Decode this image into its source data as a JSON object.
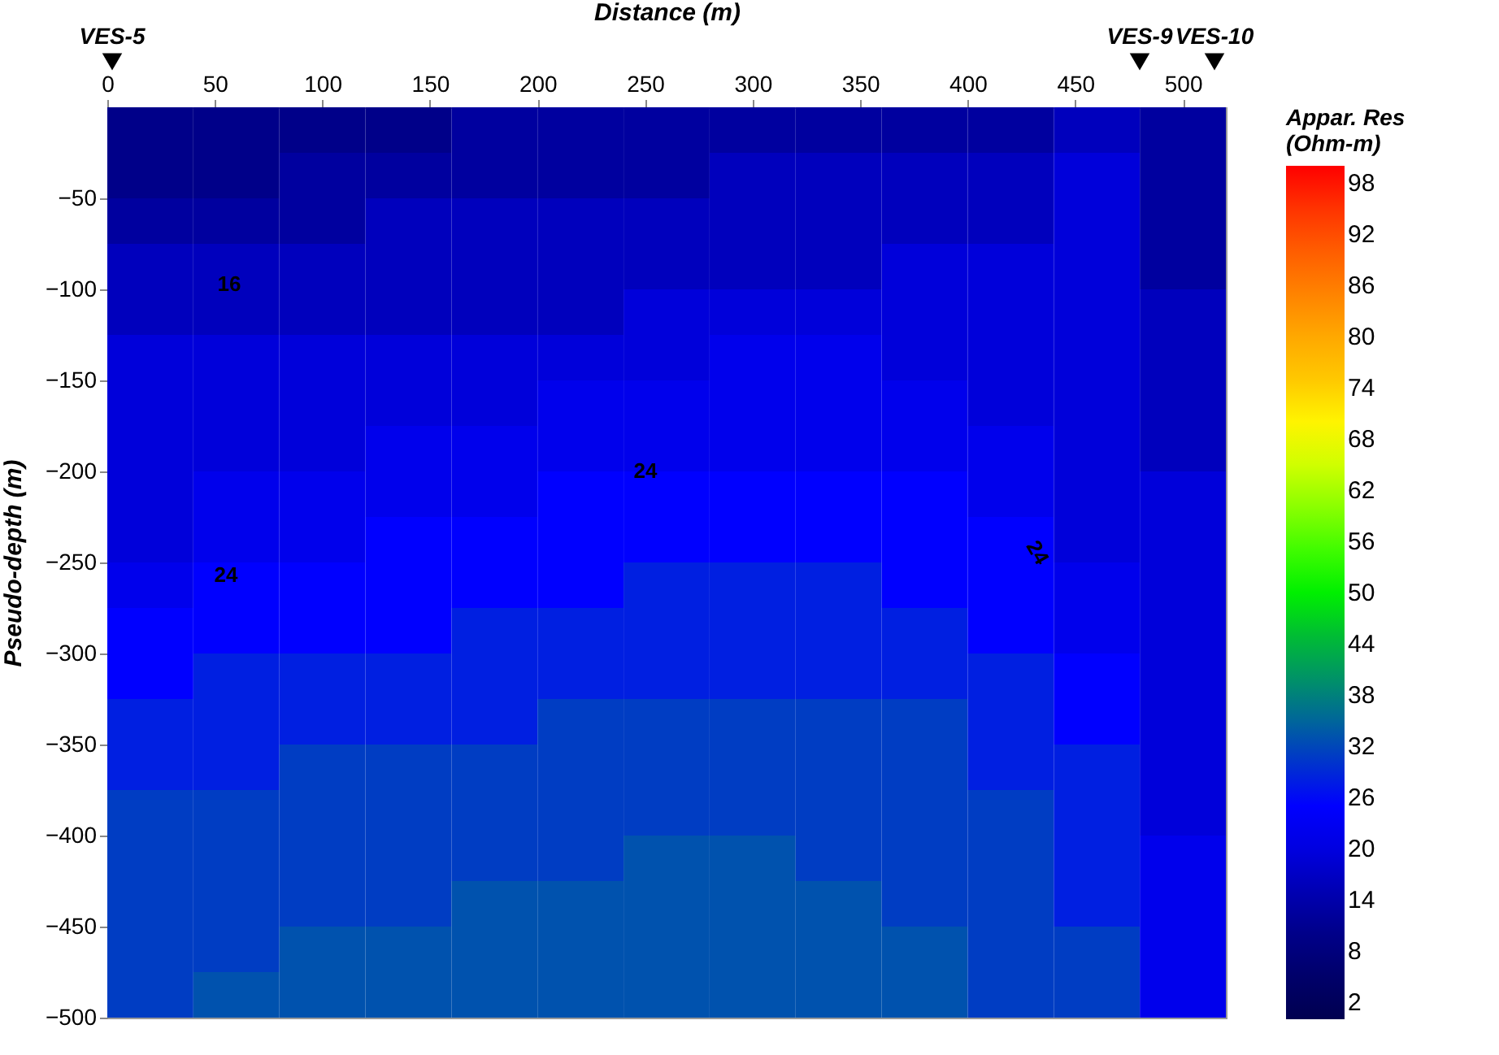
{
  "chart_data": {
    "type": "heatmap",
    "xlabel": "Distance (m)",
    "ylabel": "Pseudo-depth (m)",
    "clabel": "Appar. Res\n(Ohm-m)",
    "xlim": [
      0,
      520
    ],
    "xticks": [
      0,
      50,
      100,
      150,
      200,
      250,
      300,
      350,
      400,
      450,
      500
    ],
    "ylim": [
      -500,
      0
    ],
    "yticks": [
      -50,
      -100,
      -150,
      -200,
      -250,
      -300,
      -350,
      -400,
      -450,
      -500
    ],
    "clim": [
      0,
      100
    ],
    "cticks": [
      2,
      8,
      14,
      20,
      26,
      32,
      38,
      44,
      50,
      56,
      62,
      68,
      74,
      80,
      86,
      92,
      98
    ],
    "colors": [
      "#000050",
      "#000070",
      "#00009a",
      "#0000d8",
      "#0000ff",
      "#0040c0",
      "#008080",
      "#00b040",
      "#00f000",
      "#50ff00",
      "#b0ff00",
      "#ffff00",
      "#ffc800",
      "#ffa000",
      "#ff7000",
      "#ff4000",
      "#ff0000"
    ],
    "cells": [
      [
        10,
        10,
        10,
        10,
        13,
        13,
        13,
        13,
        13,
        13,
        13,
        16,
        13
      ],
      [
        10,
        10,
        13,
        13,
        13,
        13,
        13,
        16,
        16,
        16,
        16,
        19,
        13
      ],
      [
        13,
        13,
        13,
        16,
        16,
        16,
        16,
        16,
        16,
        16,
        16,
        19,
        13
      ],
      [
        16,
        16,
        16,
        16,
        16,
        16,
        16,
        16,
        16,
        19,
        19,
        19,
        13
      ],
      [
        16,
        16,
        16,
        16,
        16,
        16,
        19,
        19,
        19,
        19,
        19,
        19,
        16
      ],
      [
        19,
        19,
        19,
        19,
        19,
        19,
        19,
        22,
        22,
        19,
        19,
        19,
        16
      ],
      [
        19,
        19,
        19,
        19,
        19,
        22,
        22,
        22,
        22,
        22,
        19,
        19,
        16
      ],
      [
        19,
        19,
        19,
        22,
        22,
        22,
        22,
        22,
        22,
        22,
        22,
        19,
        16
      ],
      [
        19,
        22,
        22,
        22,
        22,
        25,
        25,
        25,
        25,
        25,
        22,
        19,
        19
      ],
      [
        19,
        22,
        22,
        25,
        25,
        25,
        25,
        25,
        25,
        25,
        25,
        19,
        19
      ],
      [
        22,
        25,
        25,
        25,
        25,
        25,
        28,
        28,
        28,
        25,
        25,
        22,
        19
      ],
      [
        25,
        25,
        25,
        25,
        28,
        28,
        28,
        28,
        28,
        28,
        25,
        22,
        19
      ],
      [
        25,
        28,
        28,
        28,
        28,
        28,
        28,
        28,
        28,
        28,
        28,
        25,
        19
      ],
      [
        28,
        28,
        28,
        28,
        28,
        31,
        31,
        31,
        31,
        31,
        28,
        25,
        19
      ],
      [
        28,
        28,
        31,
        31,
        31,
        31,
        31,
        31,
        31,
        31,
        28,
        28,
        19
      ],
      [
        31,
        31,
        31,
        31,
        31,
        31,
        31,
        31,
        31,
        31,
        31,
        28,
        19
      ],
      [
        31,
        31,
        31,
        31,
        31,
        31,
        33,
        33,
        31,
        31,
        31,
        28,
        22
      ],
      [
        31,
        31,
        31,
        31,
        33,
        33,
        33,
        33,
        33,
        31,
        31,
        28,
        22
      ],
      [
        31,
        31,
        33,
        33,
        33,
        33,
        33,
        33,
        33,
        33,
        31,
        31,
        22
      ],
      [
        31,
        33,
        33,
        33,
        33,
        33,
        33,
        33,
        33,
        33,
        31,
        31,
        22
      ]
    ],
    "annotations": [
      "16",
      "24",
      "24",
      "24",
      "VES-5",
      "VES-9",
      "VES-10"
    ]
  }
}
